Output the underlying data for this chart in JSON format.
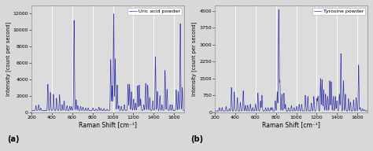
{
  "line_color": "#3636aa",
  "bg_color": "#d8d8d8",
  "plot_bg": "#dcdcdc",
  "xlabel": "Raman Shift [cm⁻¹]",
  "ylabel": "Intensity [count per second]",
  "legend_a": "Uric acid powder",
  "legend_b": "Tyrosine powder",
  "label_a": "(a)",
  "label_b": "(b)",
  "xlim": [
    200,
    1700
  ],
  "ylim_a": [
    0,
    13000
  ],
  "ylim_b": [
    0,
    4750
  ],
  "yticks_a": [
    0,
    2000,
    4000,
    6000,
    8000,
    10000,
    12000
  ],
  "yticks_b": [
    0,
    750,
    1500,
    2250,
    3000,
    3750,
    4500
  ],
  "xticks": [
    200,
    400,
    600,
    800,
    1000,
    1200,
    1400,
    1600
  ],
  "uric_acid_peaks": [
    [
      243,
      800
    ],
    [
      270,
      900
    ],
    [
      290,
      500
    ],
    [
      360,
      3400
    ],
    [
      385,
      2400
    ],
    [
      415,
      2200
    ],
    [
      445,
      1700
    ],
    [
      475,
      2100
    ],
    [
      500,
      900
    ],
    [
      520,
      1400
    ],
    [
      548,
      800
    ],
    [
      575,
      700
    ],
    [
      592,
      700
    ],
    [
      618,
      11200
    ],
    [
      638,
      1500
    ],
    [
      655,
      800
    ],
    [
      682,
      700
    ],
    [
      705,
      600
    ],
    [
      732,
      500
    ],
    [
      757,
      500
    ],
    [
      803,
      500
    ],
    [
      832,
      400
    ],
    [
      862,
      600
    ],
    [
      882,
      450
    ],
    [
      912,
      450
    ],
    [
      942,
      350
    ],
    [
      978,
      6400
    ],
    [
      992,
      3200
    ],
    [
      1007,
      12000
    ],
    [
      1022,
      6500
    ],
    [
      1042,
      3300
    ],
    [
      1058,
      800
    ],
    [
      1082,
      700
    ],
    [
      1112,
      900
    ],
    [
      1148,
      3400
    ],
    [
      1163,
      3400
    ],
    [
      1182,
      2500
    ],
    [
      1203,
      1600
    ],
    [
      1222,
      1100
    ],
    [
      1242,
      3200
    ],
    [
      1258,
      3300
    ],
    [
      1272,
      1600
    ],
    [
      1303,
      900
    ],
    [
      1322,
      3500
    ],
    [
      1342,
      3300
    ],
    [
      1362,
      1800
    ],
    [
      1392,
      1400
    ],
    [
      1417,
      6700
    ],
    [
      1437,
      2500
    ],
    [
      1462,
      2000
    ],
    [
      1482,
      900
    ],
    [
      1512,
      5100
    ],
    [
      1532,
      2800
    ],
    [
      1562,
      900
    ],
    [
      1582,
      900
    ],
    [
      1622,
      2700
    ],
    [
      1642,
      2500
    ],
    [
      1662,
      10800
    ],
    [
      1682,
      3000
    ]
  ],
  "tyrosine_peaks": [
    [
      243,
      200
    ],
    [
      270,
      200
    ],
    [
      310,
      250
    ],
    [
      340,
      150
    ],
    [
      362,
      1100
    ],
    [
      390,
      900
    ],
    [
      420,
      650
    ],
    [
      450,
      450
    ],
    [
      478,
      950
    ],
    [
      500,
      300
    ],
    [
      522,
      300
    ],
    [
      548,
      350
    ],
    [
      572,
      200
    ],
    [
      598,
      350
    ],
    [
      622,
      850
    ],
    [
      648,
      500
    ],
    [
      662,
      750
    ],
    [
      698,
      200
    ],
    [
      722,
      200
    ],
    [
      748,
      200
    ],
    [
      762,
      200
    ],
    [
      793,
      500
    ],
    [
      812,
      900
    ],
    [
      827,
      4550
    ],
    [
      838,
      1400
    ],
    [
      858,
      800
    ],
    [
      878,
      850
    ],
    [
      893,
      350
    ],
    [
      923,
      200
    ],
    [
      952,
      300
    ],
    [
      978,
      200
    ],
    [
      1003,
      250
    ],
    [
      1028,
      350
    ],
    [
      1052,
      350
    ],
    [
      1088,
      750
    ],
    [
      1113,
      700
    ],
    [
      1148,
      400
    ],
    [
      1172,
      700
    ],
    [
      1203,
      600
    ],
    [
      1213,
      700
    ],
    [
      1238,
      1500
    ],
    [
      1253,
      1450
    ],
    [
      1268,
      1000
    ],
    [
      1288,
      800
    ],
    [
      1308,
      700
    ],
    [
      1328,
      1400
    ],
    [
      1343,
      1350
    ],
    [
      1363,
      700
    ],
    [
      1383,
      700
    ],
    [
      1398,
      500
    ],
    [
      1423,
      800
    ],
    [
      1438,
      2600
    ],
    [
      1463,
      1400
    ],
    [
      1483,
      800
    ],
    [
      1513,
      600
    ],
    [
      1533,
      450
    ],
    [
      1563,
      550
    ],
    [
      1588,
      650
    ],
    [
      1612,
      2100
    ],
    [
      1628,
      200
    ],
    [
      1652,
      150
    ],
    [
      1672,
      100
    ]
  ],
  "noise_scale_a": 20,
  "noise_scale_b": 8,
  "baseline_a": 200,
  "baseline_b": 50,
  "peak_sigma": 3.5
}
